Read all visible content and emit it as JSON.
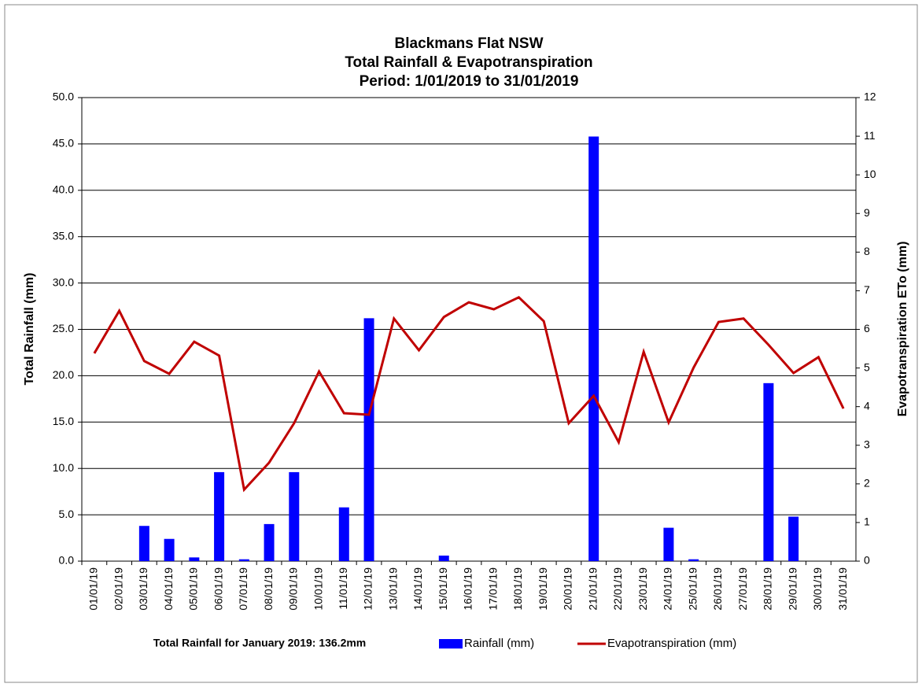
{
  "chart_data": {
    "type": "bar_line",
    "title": [
      "Blackmans Flat NSW",
      "Total Rainfall & Evapotranspiration",
      "Period: 1/01/2019 to 31/01/2019"
    ],
    "ylabel": "Total Rainfall (mm)",
    "y2label": "Evapotranspiration ETo (mm)",
    "annotation": "Total Rainfall for January 2019: 136.2mm",
    "categories": [
      "01/01/19",
      "02/01/19",
      "03/01/19",
      "04/01/19",
      "05/01/19",
      "06/01/19",
      "07/01/19",
      "08/01/19",
      "09/01/19",
      "10/01/19",
      "11/01/19",
      "12/01/19",
      "13/01/19",
      "14/01/19",
      "15/01/19",
      "16/01/19",
      "17/01/19",
      "18/01/19",
      "19/01/19",
      "20/01/19",
      "21/01/19",
      "22/01/19",
      "23/01/19",
      "24/01/19",
      "25/01/19",
      "26/01/19",
      "27/01/19",
      "28/01/19",
      "29/01/19",
      "30/01/19",
      "31/01/19"
    ],
    "series": [
      {
        "name": "Rainfall (mm)",
        "type": "bar",
        "color": "#0000ff",
        "values": [
          0,
          0,
          3.8,
          2.4,
          0.4,
          9.6,
          0.2,
          4.0,
          9.6,
          0,
          5.8,
          26.2,
          0,
          0,
          0.6,
          0,
          0,
          0,
          0,
          0,
          45.8,
          0,
          0,
          3.6,
          0.2,
          0,
          0,
          19.2,
          4.8,
          0,
          0
        ]
      },
      {
        "name": "Evapotranspiration (mm)",
        "type": "line",
        "axis": "y2",
        "color": "#c00000",
        "values": [
          5.38,
          6.48,
          5.18,
          4.85,
          5.68,
          5.32,
          1.85,
          2.55,
          3.57,
          4.91,
          3.83,
          3.79,
          6.28,
          5.46,
          6.32,
          6.7,
          6.52,
          6.83,
          6.21,
          3.57,
          4.28,
          3.08,
          5.42,
          3.59,
          5.01,
          6.19,
          6.28,
          5.6,
          4.87,
          5.28,
          3.95
        ]
      }
    ],
    "ylim": [
      0,
      50
    ],
    "yticks": [
      {
        "value": 0,
        "label": "0.0"
      },
      {
        "value": 5,
        "label": "5.0"
      },
      {
        "value": 10,
        "label": "10.0"
      },
      {
        "value": 15,
        "label": "15.0"
      },
      {
        "value": 20,
        "label": "20.0"
      },
      {
        "value": 25,
        "label": "25.0"
      },
      {
        "value": 30,
        "label": "30.0"
      },
      {
        "value": 35,
        "label": "35.0"
      },
      {
        "value": 40,
        "label": "40.0"
      },
      {
        "value": 45,
        "label": "45.0"
      },
      {
        "value": 50,
        "label": "50.0"
      }
    ],
    "y2lim": [
      0,
      12
    ],
    "y2ticks": [
      0,
      1,
      2,
      3,
      4,
      5,
      6,
      7,
      8,
      9,
      10,
      11,
      12
    ],
    "grid": true,
    "legend": "bottom"
  }
}
